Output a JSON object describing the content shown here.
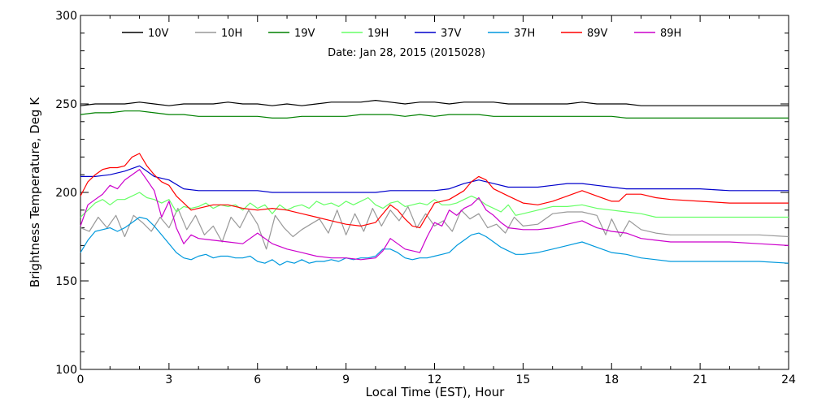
{
  "chart_data": {
    "type": "line",
    "subtitle": "Date: Jan 28, 2015 (2015028)",
    "xlabel": "Local Time (EST), Hour",
    "ylabel": "Brightness Temperature, Deg K",
    "xlim": [
      0,
      24
    ],
    "ylim": [
      100,
      300
    ],
    "xticks": [
      0,
      3,
      6,
      9,
      12,
      15,
      18,
      21,
      24
    ],
    "yticks": [
      100,
      150,
      200,
      250,
      300
    ],
    "grid": false,
    "legend_position": "top",
    "series": [
      {
        "name": "10V",
        "color": "#000000",
        "x": [
          0,
          0.5,
          1,
          1.5,
          2,
          2.5,
          3,
          3.5,
          4,
          4.5,
          5,
          5.5,
          6,
          6.5,
          7,
          7.5,
          8,
          8.5,
          9,
          9.5,
          10,
          10.5,
          11,
          11.5,
          12,
          12.5,
          13,
          13.5,
          14,
          14.5,
          15,
          15.5,
          16,
          16.5,
          17,
          17.5,
          18,
          18.5,
          19,
          19.5,
          20,
          21,
          22,
          23,
          24
        ],
        "y": [
          249,
          250,
          250,
          250,
          251,
          250,
          249,
          250,
          250,
          250,
          251,
          250,
          250,
          249,
          250,
          249,
          250,
          251,
          251,
          251,
          252,
          251,
          250,
          251,
          251,
          250,
          251,
          251,
          251,
          250,
          250,
          250,
          250,
          250,
          251,
          250,
          250,
          250,
          249,
          249,
          249,
          249,
          249,
          249,
          249
        ]
      },
      {
        "name": "10H",
        "color": "#999999",
        "x": [
          0,
          0.3,
          0.6,
          0.9,
          1.2,
          1.5,
          1.8,
          2.1,
          2.4,
          2.7,
          3,
          3.3,
          3.6,
          3.9,
          4.2,
          4.5,
          4.8,
          5.1,
          5.4,
          5.7,
          6,
          6.3,
          6.6,
          6.9,
          7.2,
          7.5,
          7.8,
          8.1,
          8.4,
          8.7,
          9,
          9.3,
          9.6,
          9.9,
          10.2,
          10.5,
          10.8,
          11.1,
          11.4,
          11.7,
          12,
          12.3,
          12.6,
          12.9,
          13.2,
          13.5,
          13.8,
          14.1,
          14.4,
          14.7,
          15,
          15.5,
          16,
          16.5,
          17,
          17.5,
          17.8,
          18,
          18.3,
          18.6,
          19,
          19.5,
          20,
          21,
          22,
          23,
          24
        ],
        "y": [
          180,
          178,
          186,
          180,
          187,
          175,
          187,
          183,
          178,
          186,
          180,
          191,
          179,
          187,
          176,
          181,
          172,
          186,
          180,
          190,
          182,
          168,
          187,
          180,
          175,
          179,
          182,
          185,
          177,
          190,
          176,
          188,
          178,
          191,
          181,
          190,
          184,
          192,
          180,
          188,
          181,
          184,
          178,
          190,
          185,
          188,
          180,
          182,
          177,
          186,
          181,
          182,
          188,
          189,
          189,
          187,
          176,
          185,
          175,
          184,
          179,
          177,
          176,
          176,
          176,
          176,
          175
        ]
      },
      {
        "name": "19V",
        "color": "#008000",
        "x": [
          0,
          0.5,
          1,
          1.5,
          2,
          2.5,
          3,
          3.5,
          4,
          4.5,
          5,
          5.5,
          6,
          6.5,
          7,
          7.5,
          8,
          8.5,
          9,
          9.5,
          10,
          10.5,
          11,
          11.5,
          12,
          12.5,
          13,
          13.5,
          14,
          14.5,
          15,
          15.5,
          16,
          16.5,
          17,
          17.5,
          18,
          18.5,
          19,
          19.5,
          20,
          21,
          22,
          23,
          24
        ],
        "y": [
          244,
          245,
          245,
          246,
          246,
          245,
          244,
          244,
          243,
          243,
          243,
          243,
          243,
          242,
          242,
          243,
          243,
          243,
          243,
          244,
          244,
          244,
          243,
          244,
          243,
          244,
          244,
          244,
          243,
          243,
          243,
          243,
          243,
          243,
          243,
          243,
          243,
          242,
          242,
          242,
          242,
          242,
          242,
          242,
          242
        ]
      },
      {
        "name": "19H",
        "color": "#66ff66",
        "x": [
          0,
          0.25,
          0.5,
          0.75,
          1,
          1.25,
          1.5,
          1.75,
          2,
          2.25,
          2.5,
          2.75,
          3,
          3.25,
          3.5,
          3.75,
          4,
          4.25,
          4.5,
          4.75,
          5,
          5.25,
          5.5,
          5.75,
          6,
          6.25,
          6.5,
          6.75,
          7,
          7.25,
          7.5,
          7.75,
          8,
          8.25,
          8.5,
          8.75,
          9,
          9.25,
          9.5,
          9.75,
          10,
          10.25,
          10.5,
          10.75,
          11,
          11.25,
          11.5,
          11.75,
          12,
          12.25,
          12.5,
          12.75,
          13,
          13.25,
          13.5,
          13.75,
          14,
          14.25,
          14.5,
          14.75,
          15,
          15.5,
          16,
          16.5,
          17,
          17.5,
          18,
          18.5,
          19,
          19.5,
          20,
          21,
          22,
          23,
          24
        ],
        "y": [
          186,
          190,
          194,
          196,
          193,
          196,
          196,
          198,
          200,
          197,
          196,
          194,
          196,
          189,
          192,
          191,
          192,
          194,
          191,
          193,
          192,
          193,
          190,
          194,
          191,
          193,
          188,
          193,
          190,
          192,
          193,
          191,
          195,
          193,
          194,
          192,
          195,
          193,
          195,
          197,
          193,
          191,
          194,
          195,
          192,
          193,
          194,
          193,
          196,
          193,
          193,
          194,
          196,
          198,
          196,
          193,
          191,
          189,
          193,
          187,
          188,
          190,
          192,
          192,
          193,
          191,
          190,
          189,
          188,
          186,
          186,
          186,
          186,
          186,
          186
        ]
      },
      {
        "name": "37V",
        "color": "#0000cc",
        "x": [
          0,
          0.5,
          1,
          1.5,
          2,
          2.5,
          3,
          3.5,
          4,
          4.5,
          5,
          5.5,
          6,
          6.5,
          7,
          7.5,
          8,
          8.5,
          9,
          9.5,
          10,
          10.5,
          11,
          11.5,
          12,
          12.5,
          13,
          13.5,
          14,
          14.5,
          15,
          15.5,
          16,
          16.5,
          17,
          17.5,
          18,
          18.5,
          19,
          19.5,
          20,
          21,
          22,
          23,
          24
        ],
        "y": [
          209,
          209,
          210,
          212,
          215,
          209,
          207,
          202,
          201,
          201,
          201,
          201,
          201,
          200,
          200,
          200,
          200,
          200,
          200,
          200,
          200,
          201,
          201,
          201,
          201,
          202,
          205,
          207,
          205,
          203,
          203,
          203,
          204,
          205,
          205,
          204,
          203,
          202,
          202,
          202,
          202,
          202,
          201,
          201,
          201
        ]
      },
      {
        "name": "37H",
        "color": "#0099dd",
        "x": [
          0,
          0.25,
          0.5,
          0.75,
          1,
          1.25,
          1.5,
          1.75,
          2,
          2.25,
          2.5,
          2.75,
          3,
          3.25,
          3.5,
          3.75,
          4,
          4.25,
          4.5,
          4.75,
          5,
          5.25,
          5.5,
          5.75,
          6,
          6.25,
          6.5,
          6.75,
          7,
          7.25,
          7.5,
          7.75,
          8,
          8.25,
          8.5,
          8.75,
          9,
          9.25,
          9.5,
          9.75,
          10,
          10.25,
          10.5,
          10.75,
          11,
          11.25,
          11.5,
          11.75,
          12,
          12.25,
          12.5,
          12.75,
          13,
          13.25,
          13.5,
          13.75,
          14,
          14.25,
          14.5,
          14.75,
          15,
          15.5,
          16,
          16.5,
          17,
          17.5,
          18,
          18.5,
          19,
          19.5,
          20,
          21,
          22,
          23,
          24
        ],
        "y": [
          166,
          173,
          178,
          179,
          180,
          178,
          180,
          183,
          186,
          185,
          181,
          176,
          171,
          166,
          163,
          162,
          164,
          165,
          163,
          164,
          164,
          163,
          163,
          164,
          161,
          160,
          162,
          159,
          161,
          160,
          162,
          160,
          161,
          161,
          162,
          161,
          163,
          162,
          163,
          163,
          164,
          168,
          168,
          166,
          163,
          162,
          163,
          163,
          164,
          165,
          166,
          170,
          173,
          176,
          177,
          175,
          172,
          169,
          167,
          165,
          165,
          166,
          168,
          170,
          172,
          169,
          166,
          165,
          163,
          162,
          161,
          161,
          161,
          161,
          160
        ]
      },
      {
        "name": "89V",
        "color": "#ff0000",
        "x": [
          0,
          0.25,
          0.5,
          0.75,
          1,
          1.25,
          1.5,
          1.75,
          2,
          2.25,
          2.5,
          2.75,
          3,
          3.25,
          3.5,
          3.75,
          4,
          4.5,
          5,
          5.5,
          6,
          6.5,
          7,
          7.5,
          8,
          8.5,
          9,
          9.5,
          10,
          10.25,
          10.5,
          10.75,
          11,
          11.25,
          11.5,
          11.75,
          12,
          12.5,
          13,
          13.25,
          13.5,
          13.75,
          14,
          14.5,
          15,
          15.5,
          16,
          16.5,
          17,
          17.5,
          18,
          18.25,
          18.5,
          19,
          19.5,
          20,
          21,
          22,
          23,
          24
        ],
        "y": [
          198,
          206,
          210,
          213,
          214,
          214,
          215,
          220,
          222,
          215,
          210,
          206,
          204,
          198,
          194,
          190,
          191,
          193,
          193,
          191,
          190,
          191,
          190,
          188,
          186,
          184,
          182,
          181,
          183,
          188,
          193,
          190,
          185,
          181,
          180,
          187,
          194,
          196,
          201,
          206,
          209,
          207,
          202,
          198,
          194,
          193,
          195,
          198,
          201,
          198,
          195,
          195,
          199,
          199,
          197,
          196,
          195,
          194,
          194,
          194
        ]
      },
      {
        "name": "89H",
        "color": "#cc00cc",
        "x": [
          0,
          0.25,
          0.5,
          0.75,
          1,
          1.25,
          1.5,
          1.75,
          2,
          2.25,
          2.5,
          2.75,
          3,
          3.25,
          3.5,
          3.75,
          4,
          4.5,
          5,
          5.5,
          6,
          6.5,
          7,
          7.5,
          8,
          8.5,
          9,
          9.5,
          10,
          10.25,
          10.5,
          10.75,
          11,
          11.25,
          11.5,
          11.75,
          12,
          12.25,
          12.5,
          12.75,
          13,
          13.25,
          13.5,
          13.75,
          14,
          14.25,
          14.5,
          15,
          15.5,
          16,
          16.5,
          17,
          17.5,
          18,
          18.5,
          19,
          19.5,
          20,
          21,
          22,
          23,
          24
        ],
        "y": [
          181,
          193,
          196,
          199,
          204,
          202,
          207,
          210,
          213,
          207,
          201,
          186,
          195,
          180,
          171,
          176,
          174,
          173,
          172,
          171,
          177,
          171,
          168,
          166,
          164,
          163,
          163,
          162,
          163,
          167,
          174,
          171,
          168,
          167,
          166,
          175,
          183,
          181,
          190,
          187,
          191,
          193,
          197,
          190,
          187,
          183,
          180,
          179,
          179,
          180,
          182,
          184,
          180,
          178,
          177,
          174,
          173,
          172,
          172,
          172,
          171,
          170
        ]
      }
    ]
  }
}
